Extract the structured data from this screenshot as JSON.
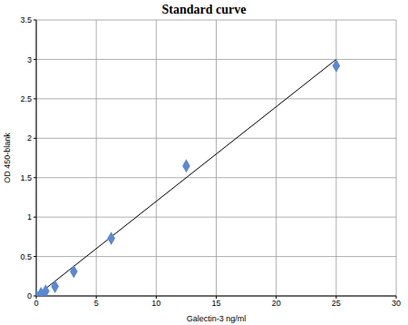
{
  "chart_data": {
    "type": "scatter",
    "title": "Standard curve",
    "x_label": "Galectin-3 ng/ml",
    "y_label": "OD 450-blank",
    "x": [
      0,
      0.39,
      0.78,
      1.56,
      3.125,
      6.25,
      12.5,
      25
    ],
    "values": [
      0.0,
      0.03,
      0.06,
      0.12,
      0.31,
      0.73,
      1.65,
      2.92
    ],
    "color": "#5b87d3",
    "marker": "diamond",
    "fit_line": {
      "x": [
        0,
        25
      ],
      "values": [
        0,
        3.0
      ],
      "color": "#000000"
    },
    "xlim": [
      0,
      30
    ],
    "xticks": [
      0,
      5,
      10,
      15,
      20,
      25,
      30
    ],
    "ylim": [
      0,
      3.5
    ],
    "yticks": [
      0,
      0.5,
      1,
      1.5,
      2,
      2.5,
      3,
      3.5
    ],
    "grid": true
  }
}
